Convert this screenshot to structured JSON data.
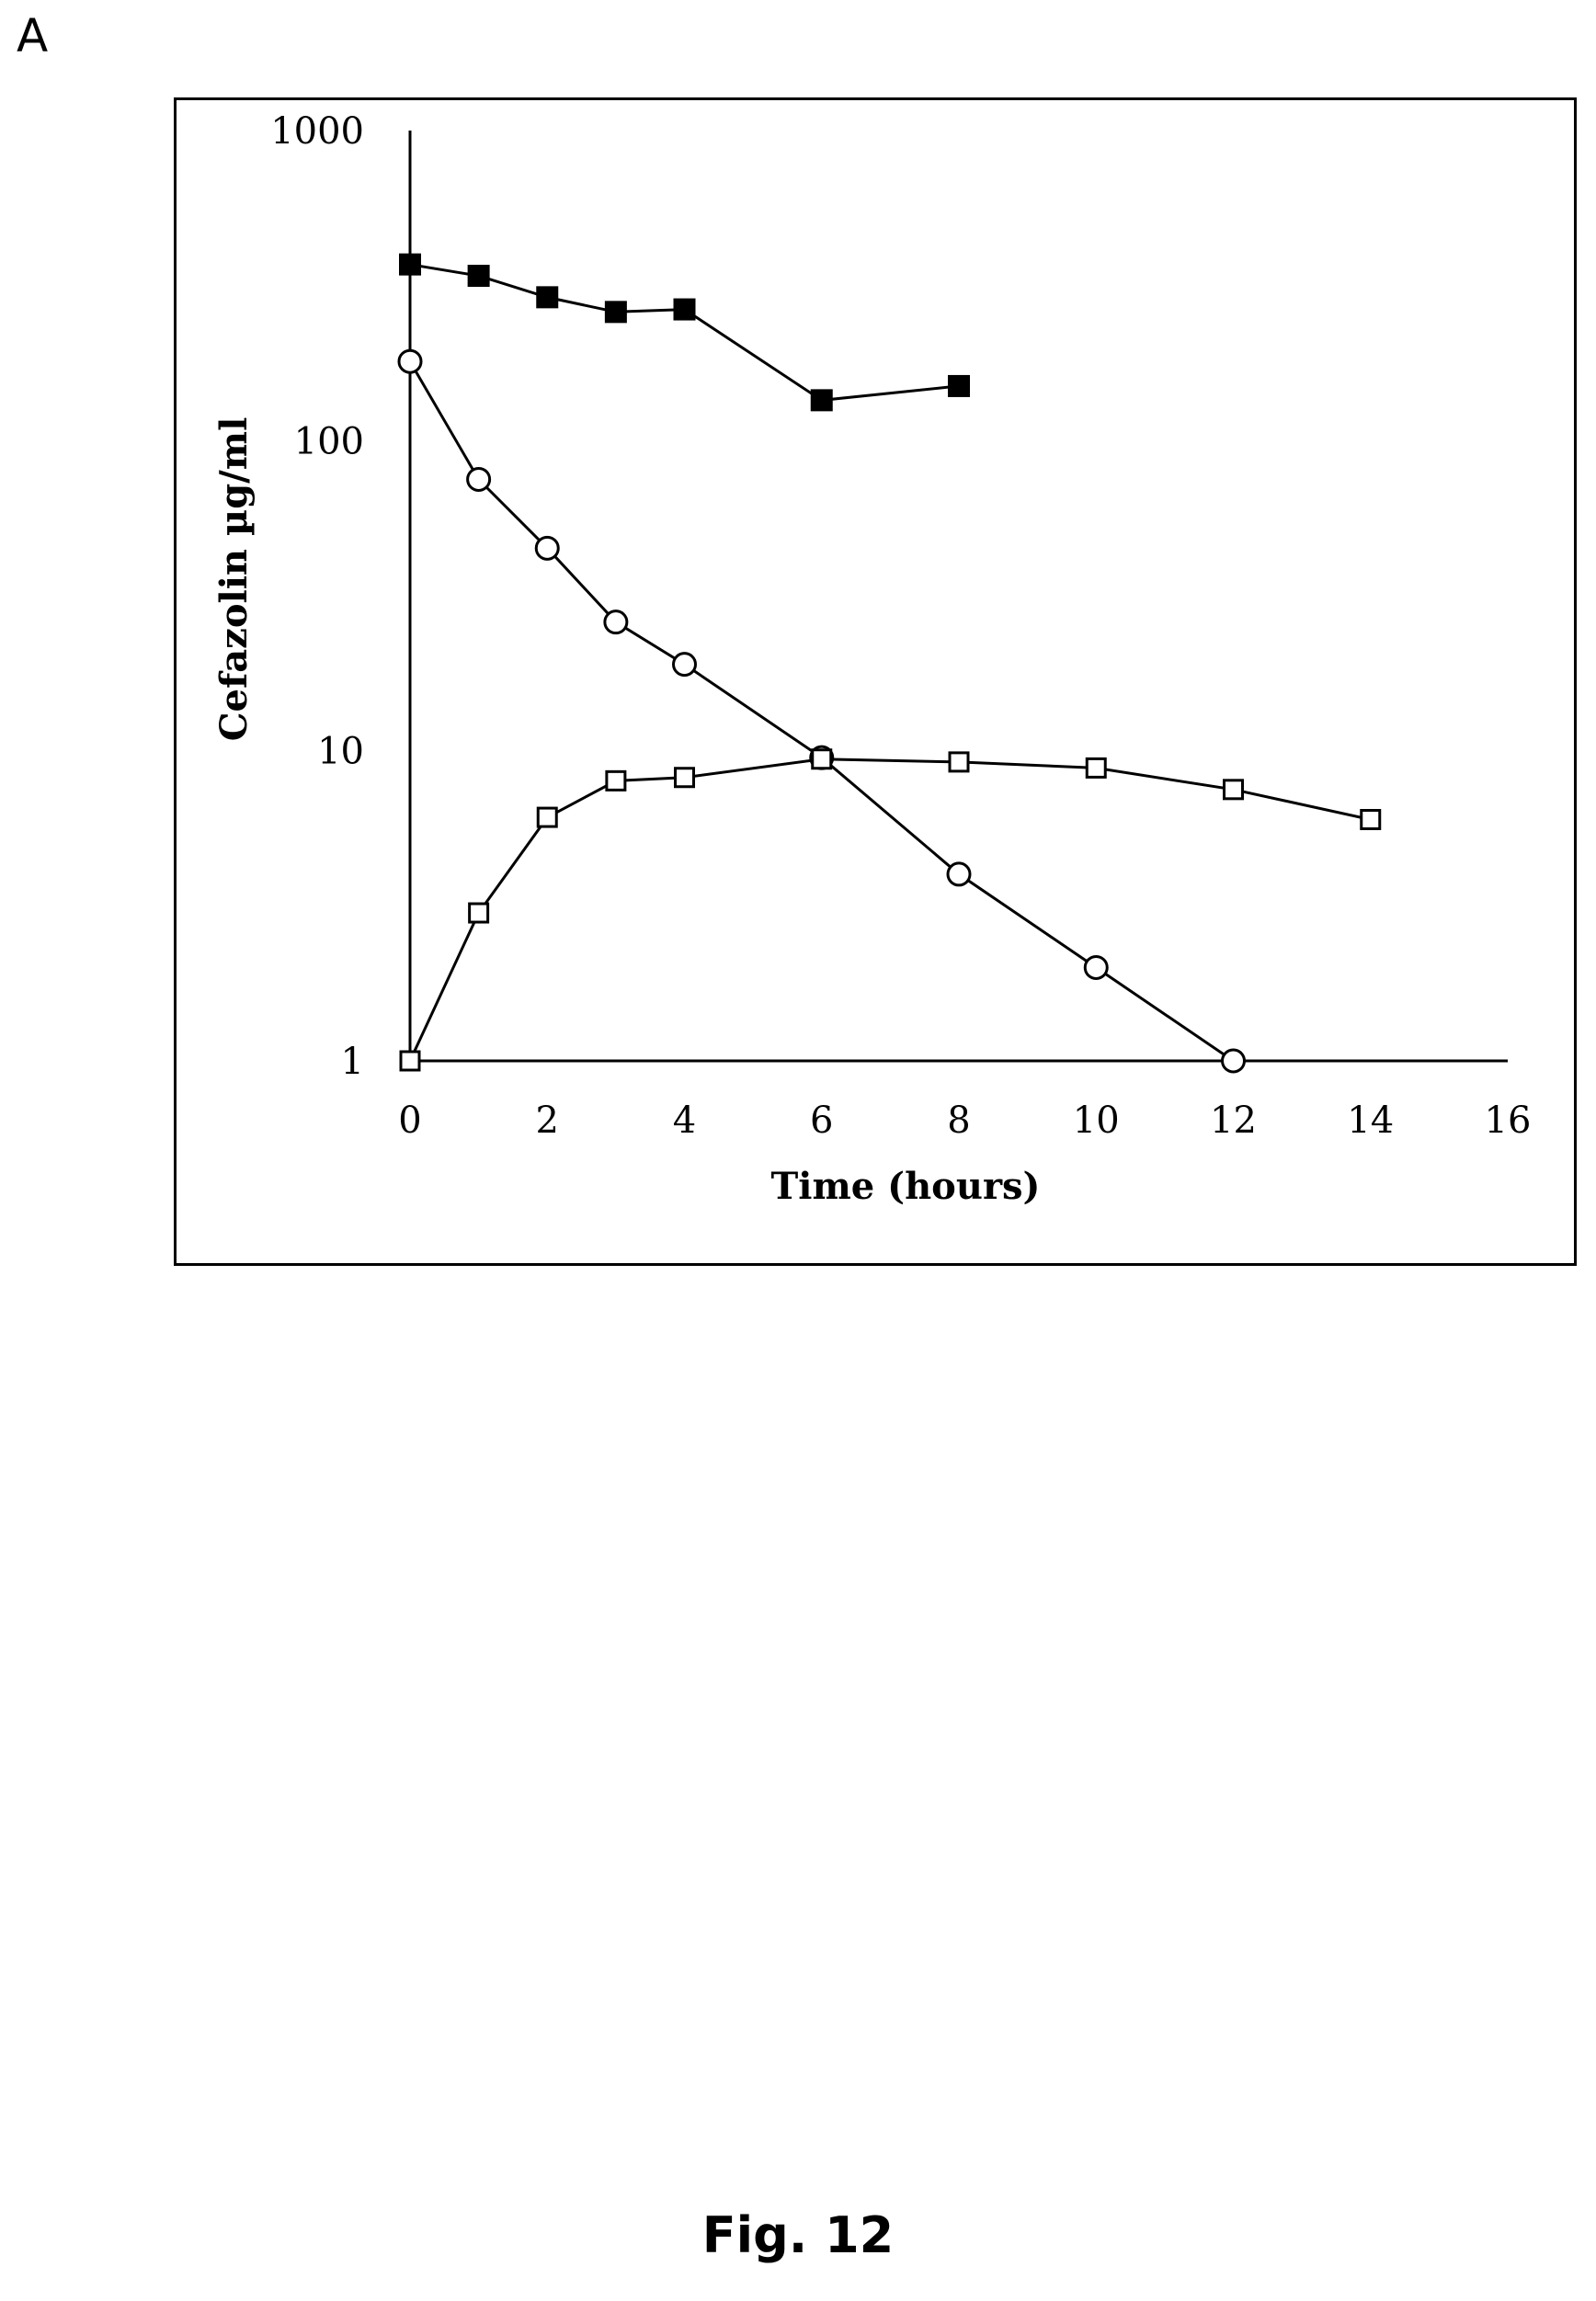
{
  "panel_label": "A",
  "caption": "Fig. 12",
  "chart_data": {
    "type": "line",
    "xlabel": "Time (hours)",
    "ylabel": "Cefazolin  µg/ml",
    "xlim": [
      0,
      16
    ],
    "ylim": [
      1,
      1000
    ],
    "yscale": "log",
    "grid": false,
    "legend": "none",
    "x_ticks": [
      "0",
      "2",
      "4",
      "6",
      "8",
      "10",
      "12",
      "14",
      "16"
    ],
    "y_ticks": [
      "1",
      "10",
      "100",
      "1000"
    ],
    "series": [
      {
        "marker": "filled-square",
        "color": "#000000",
        "x": [
          0,
          1,
          2,
          3,
          4,
          6,
          8
        ],
        "y": [
          370,
          340,
          290,
          260,
          265,
          135,
          150
        ]
      },
      {
        "marker": "open-circle",
        "color": "#000000",
        "x": [
          0,
          1,
          2,
          3,
          4,
          6,
          8,
          10,
          12
        ],
        "y": [
          180,
          75,
          45,
          26,
          19,
          9.5,
          4,
          2,
          1
        ]
      },
      {
        "marker": "open-square",
        "color": "#000000",
        "x": [
          0,
          1,
          2,
          3,
          4,
          6,
          8,
          10,
          12,
          14
        ],
        "y": [
          1,
          3,
          6.1,
          8,
          8.2,
          9.4,
          9.2,
          8.8,
          7.5,
          6
        ]
      }
    ]
  }
}
